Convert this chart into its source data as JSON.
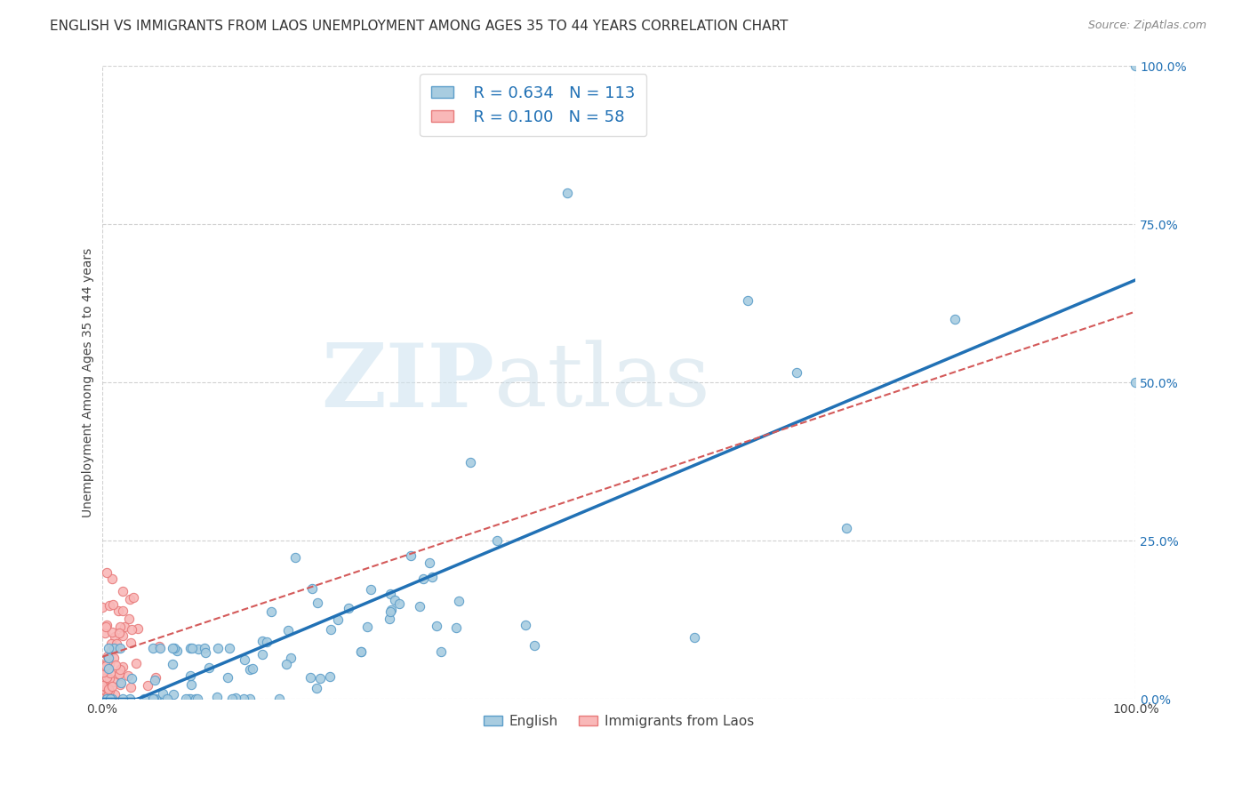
{
  "title": "ENGLISH VS IMMIGRANTS FROM LAOS UNEMPLOYMENT AMONG AGES 35 TO 44 YEARS CORRELATION CHART",
  "source": "Source: ZipAtlas.com",
  "ylabel_label": "Unemployment Among Ages 35 to 44 years",
  "right_axis_ticks": [
    0.0,
    25.0,
    50.0,
    75.0,
    100.0
  ],
  "english_R": 0.634,
  "english_N": 113,
  "laos_R": 0.1,
  "laos_N": 58,
  "english_color": "#a8cce0",
  "english_edge_color": "#5b9dc9",
  "english_line_color": "#2171b5",
  "laos_color": "#f9b8b8",
  "laos_edge_color": "#e87a7a",
  "laos_line_color": "#d45a5a",
  "watermark_zip": "ZIP",
  "watermark_atlas": "atlas",
  "bg_color": "#ffffff",
  "grid_color": "#cccccc",
  "title_fontsize": 11,
  "axis_label_fontsize": 10,
  "tick_fontsize": 10,
  "legend_fontsize": 13,
  "right_tick_color": "#2171b5"
}
